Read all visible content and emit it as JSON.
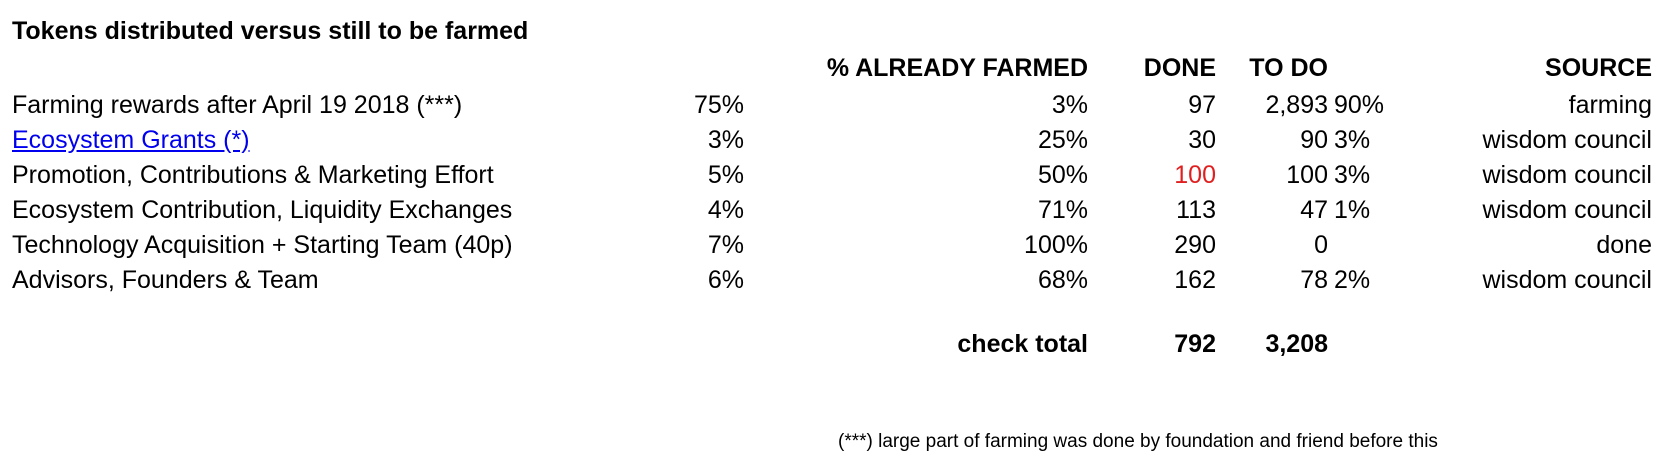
{
  "title": "Tokens distributed versus still to be farmed",
  "headers": {
    "pct_farmed": "% ALREADY FARMED",
    "done": "DONE",
    "todo": "TO DO",
    "source": "SOURCE"
  },
  "rows": [
    {
      "name": "Farming rewards after April 19 2018 (***)",
      "share": "75%",
      "pct_farmed": "3%",
      "done": "97",
      "todo": "2,893",
      "todo_pct": "90%",
      "source": "farming"
    },
    {
      "name": "Ecosystem Grants  (*)",
      "share": "3%",
      "pct_farmed": "25%",
      "done": "30",
      "todo": "90",
      "todo_pct": "3%",
      "source": "wisdom council"
    },
    {
      "name": "Promotion, Contributions & Marketing Effort",
      "share": "5%",
      "pct_farmed": "50%",
      "done": "100",
      "todo": "100",
      "todo_pct": "3%",
      "source": "wisdom council"
    },
    {
      "name": "Ecosystem Contribution, Liquidity Exchanges",
      "share": "4%",
      "pct_farmed": "71%",
      "done": "113",
      "todo": "47",
      "todo_pct": "1%",
      "source": "wisdom council"
    },
    {
      "name": "Technology Acquisition + Starting Team (40p)",
      "share": "7%",
      "pct_farmed": "100%",
      "done": "290",
      "todo": "0",
      "todo_pct": "",
      "source": "done"
    },
    {
      "name": "Advisors, Founders & Team",
      "share": "6%",
      "pct_farmed": "68%",
      "done": "162",
      "todo": "78",
      "todo_pct": "2%",
      "source": "wisdom council"
    }
  ],
  "totals": {
    "label": "check total",
    "done": "792",
    "todo": "3,208"
  },
  "footnote": "(***) large part of farming was done by foundation and friend before this",
  "colors": {
    "link": "#0000ee",
    "highlight": "#e02020"
  }
}
